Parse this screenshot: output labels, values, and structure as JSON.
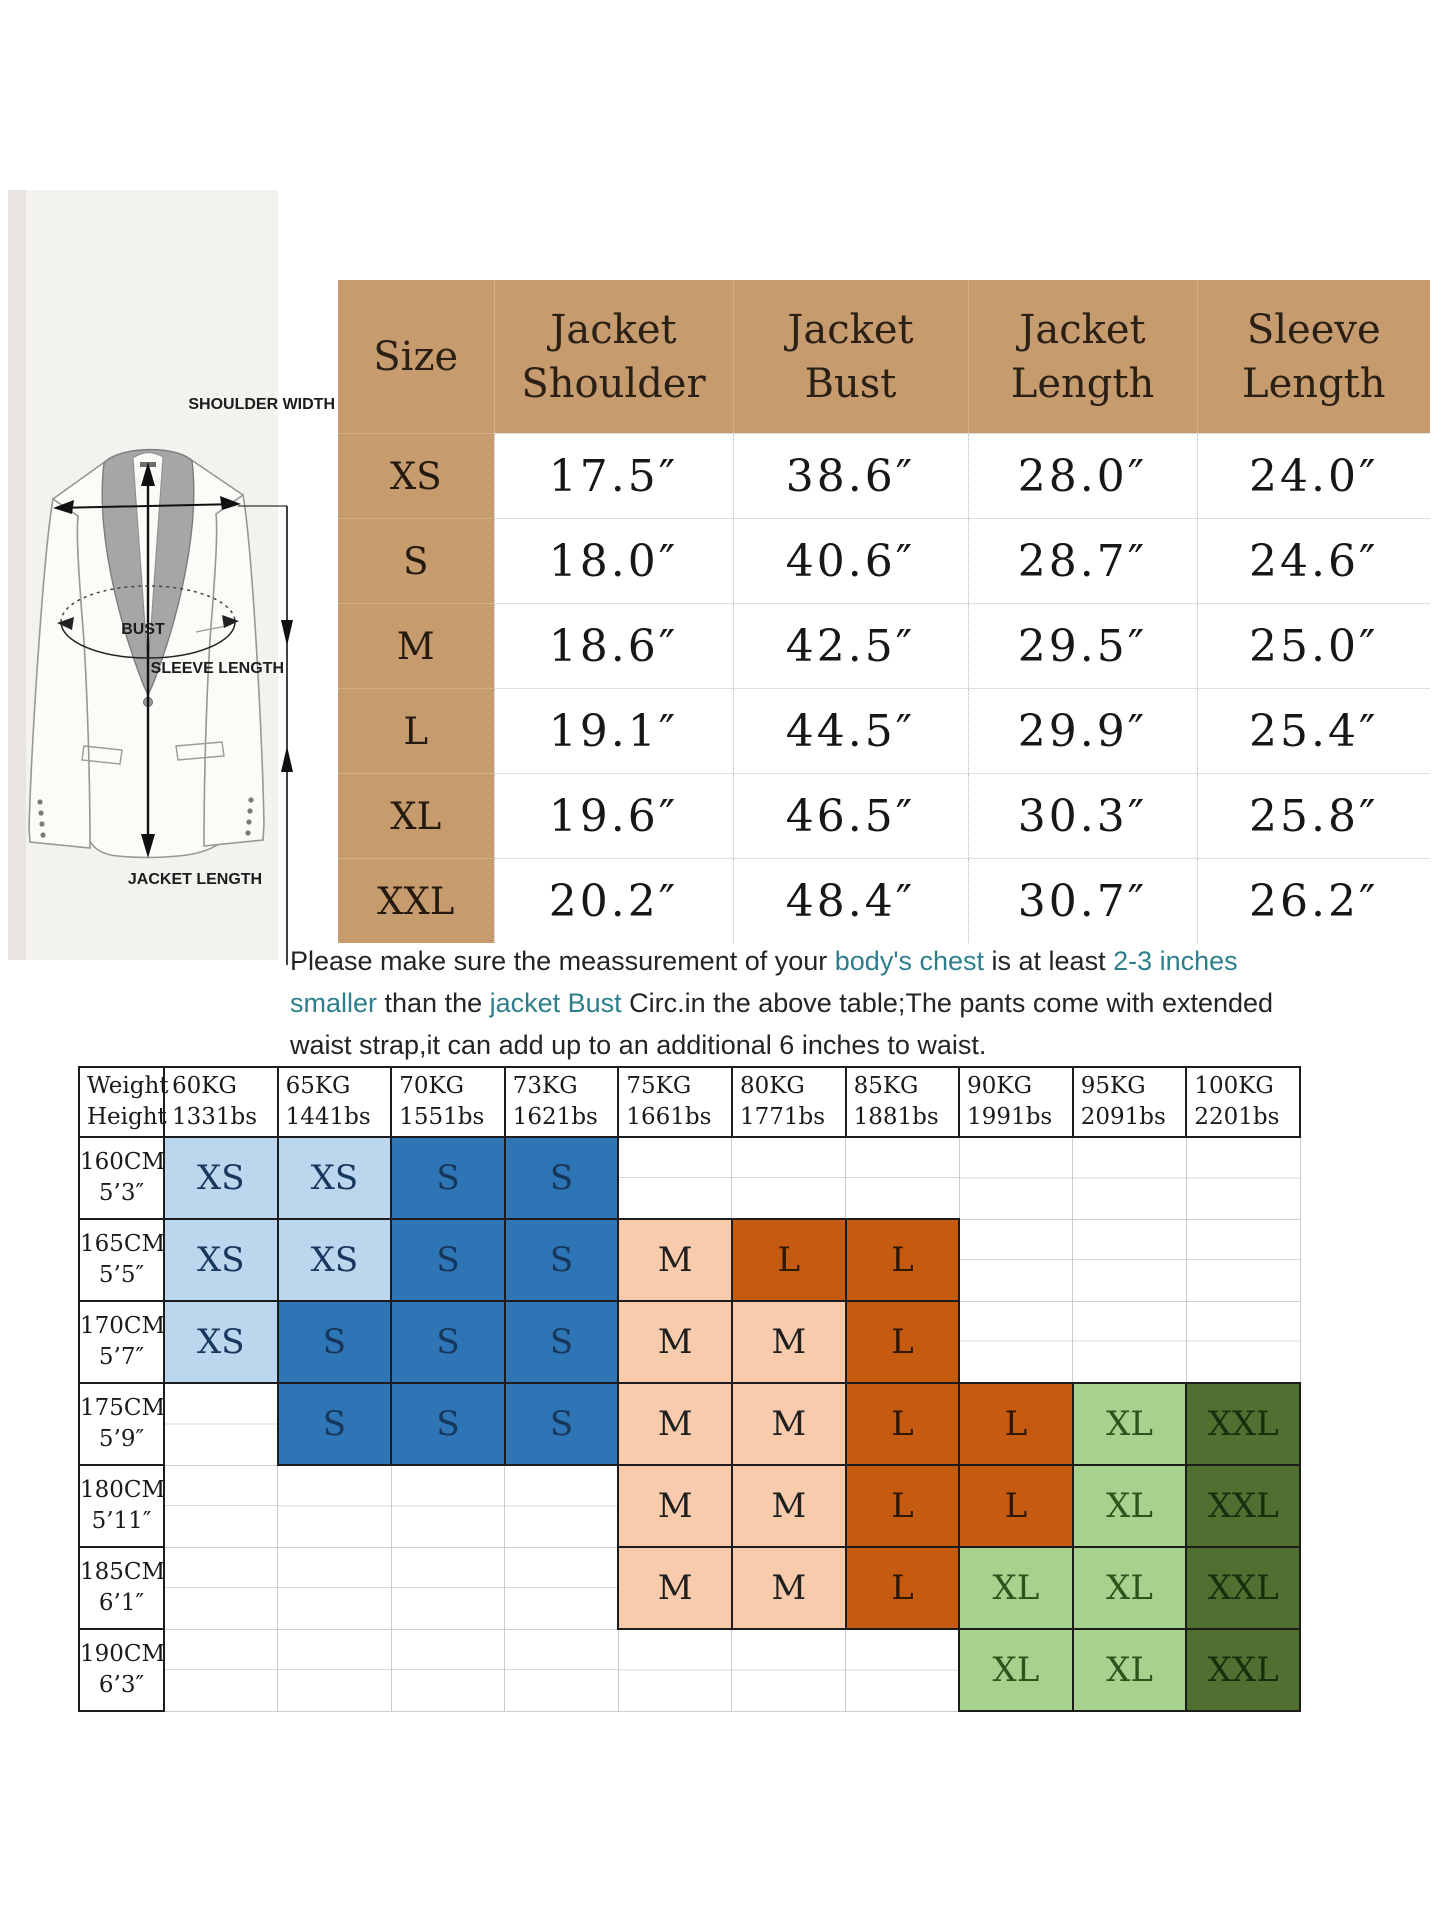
{
  "colors": {
    "tan": "#C69B6D",
    "teal_text": "#2E7E8C",
    "cell_styles": {
      "xs": {
        "bg": "#BCD6EE",
        "fg": "#17375E"
      },
      "s": {
        "bg": "#2E75B6",
        "fg": "#16365C"
      },
      "m": {
        "bg": "#F8CBAD",
        "fg": "#1F1F1F"
      },
      "l": {
        "bg": "#C55A11",
        "fg": "#2F1703"
      },
      "xl": {
        "bg": "#A9D18E",
        "fg": "#2C541C"
      },
      "xxl": {
        "bg": "#507031",
        "fg": "#16300F"
      }
    }
  },
  "jacket_diagram": {
    "labels": {
      "shoulder_width": "SHOULDER WIDTH",
      "bust": "BUST",
      "sleeve_length": "SLEEVE LENGTH",
      "jacket_length": "JACKET LENGTH"
    }
  },
  "size_table": {
    "columns": [
      "Size",
      "Jacket Shoulder",
      "Jacket Bust",
      "Jacket Length",
      "Sleeve Length"
    ],
    "rows": [
      {
        "size": "XS",
        "values": [
          "17.5″",
          "38.6″",
          "28.0″",
          "24.0″"
        ]
      },
      {
        "size": "S",
        "values": [
          "18.0″",
          "40.6″",
          "28.7″",
          "24.6″"
        ]
      },
      {
        "size": "M",
        "values": [
          "18.6″",
          "42.5″",
          "29.5″",
          "25.0″"
        ]
      },
      {
        "size": "L",
        "values": [
          "19.1″",
          "44.5″",
          "29.9″",
          "25.4″"
        ]
      },
      {
        "size": "XL",
        "values": [
          "19.6″",
          "46.5″",
          "30.3″",
          "25.8″"
        ]
      },
      {
        "size": "XXL",
        "values": [
          "20.2″",
          "48.4″",
          "30.7″",
          "26.2″"
        ]
      }
    ]
  },
  "note": {
    "lines": [
      [
        {
          "t": "Please make sure the meassurement of your ",
          "s": "dark"
        },
        {
          "t": "body's chest",
          "s": "teal"
        },
        {
          "t": " is at least ",
          "s": "dark"
        },
        {
          "t": "2-3 inches",
          "s": "teal"
        }
      ],
      [
        {
          "t": "smaller",
          "s": "teal"
        },
        {
          "t": " than the ",
          "s": "dark"
        },
        {
          "t": "jacket Bust",
          "s": "teal"
        },
        {
          "t": " Circ.in the above table;The pants come with extended",
          "s": "dark"
        }
      ],
      [
        {
          "t": "waist strap,it can add up to an additional 6 inches to waist.",
          "s": "dark"
        }
      ]
    ]
  },
  "fit_matrix": {
    "corner": {
      "top": "Weight",
      "bottom": "Height"
    },
    "weights": [
      {
        "kg": "60KG",
        "lbs": "1331bs"
      },
      {
        "kg": "65KG",
        "lbs": "1441bs"
      },
      {
        "kg": "70KG",
        "lbs": "1551bs"
      },
      {
        "kg": "73KG",
        "lbs": "1621bs"
      },
      {
        "kg": "75KG",
        "lbs": "1661bs"
      },
      {
        "kg": "80KG",
        "lbs": "1771bs"
      },
      {
        "kg": "85KG",
        "lbs": "1881bs"
      },
      {
        "kg": "90KG",
        "lbs": "1991bs"
      },
      {
        "kg": "95KG",
        "lbs": "2091bs"
      },
      {
        "kg": "100KG",
        "lbs": "2201bs"
      }
    ],
    "rows": [
      {
        "cm": "160CM",
        "ft": "5’3″",
        "cells": [
          "XS",
          "XS",
          "S",
          "S",
          "",
          "",
          "",
          "",
          "",
          ""
        ]
      },
      {
        "cm": "165CM",
        "ft": "5’5″",
        "cells": [
          "XS",
          "XS",
          "S",
          "S",
          "M",
          "L",
          "L",
          "",
          "",
          ""
        ]
      },
      {
        "cm": "170CM",
        "ft": "5’7″",
        "cells": [
          "XS",
          "S",
          "S",
          "S",
          "M",
          "M",
          "L",
          "",
          "",
          ""
        ]
      },
      {
        "cm": "175CM",
        "ft": "5’9″",
        "cells": [
          "",
          "S",
          "S",
          "S",
          "M",
          "M",
          "L",
          "L",
          "XL",
          "XXL"
        ]
      },
      {
        "cm": "180CM",
        "ft": "5’11″",
        "cells": [
          "",
          "",
          "",
          "",
          "M",
          "M",
          "L",
          "L",
          "XL",
          "XXL"
        ]
      },
      {
        "cm": "185CM",
        "ft": "6’1″",
        "cells": [
          "",
          "",
          "",
          "",
          "M",
          "M",
          "L",
          "XL",
          "XL",
          "XXL"
        ]
      },
      {
        "cm": "190CM",
        "ft": "6’3″",
        "cells": [
          "",
          "",
          "",
          "",
          "",
          "",
          "",
          "XL",
          "XL",
          "XXL"
        ]
      }
    ]
  }
}
